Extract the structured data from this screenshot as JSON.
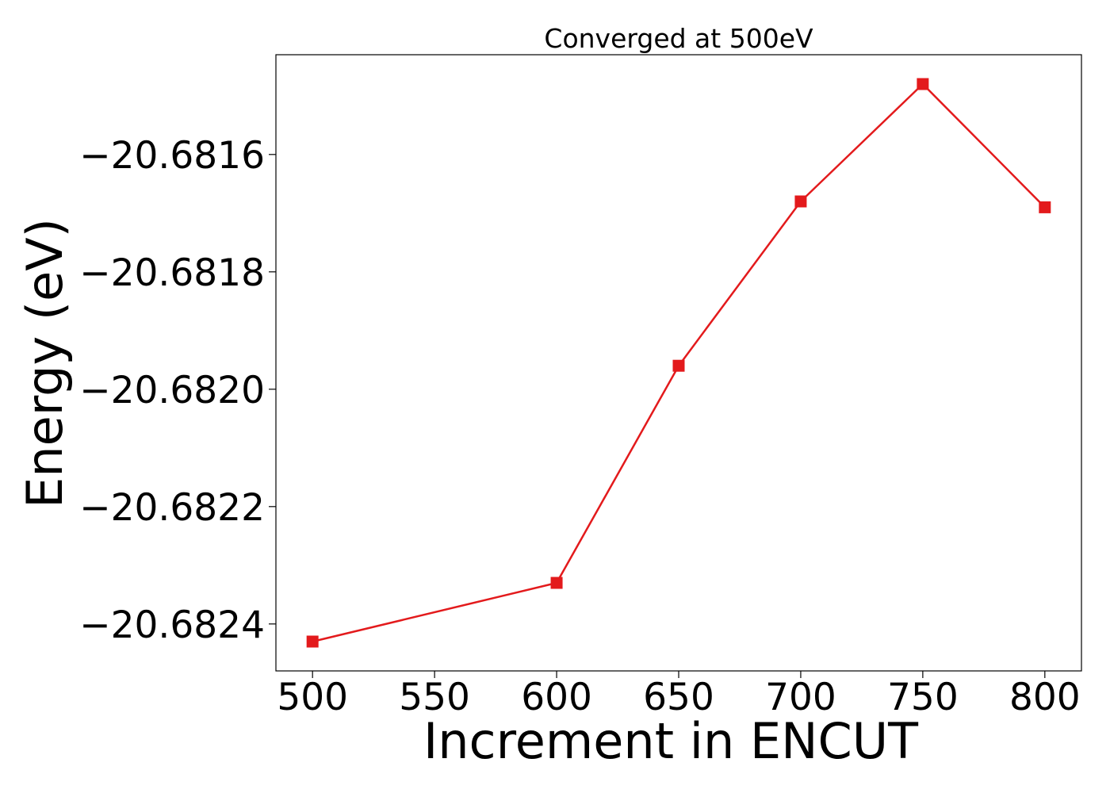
{
  "chart_data": {
    "type": "line",
    "title": "Converged at 500eV",
    "xlabel": "Increment in ENCUT",
    "ylabel": "Energy (eV)",
    "x": [
      500,
      600,
      650,
      700,
      750,
      800
    ],
    "series": [
      {
        "values": [
          -20.68243,
          -20.68233,
          -20.68196,
          -20.68168,
          -20.68148,
          -20.68169
        ],
        "color": "#e31a1c",
        "marker": "square"
      }
    ],
    "xlim": [
      485,
      815
    ],
    "ylim": [
      -20.68248,
      -20.68143
    ],
    "xticks": [
      500,
      550,
      600,
      650,
      700,
      750,
      800
    ],
    "xtick_labels": [
      "500",
      "550",
      "600",
      "650",
      "700",
      "750",
      "800"
    ],
    "yticks": [
      -20.6824,
      -20.6822,
      -20.682,
      -20.6818,
      -20.6816
    ],
    "ytick_labels": [
      "−20.6824",
      "−20.6822",
      "−20.6820",
      "−20.6818",
      "−20.6816"
    ],
    "grid": false,
    "legend": "none"
  }
}
